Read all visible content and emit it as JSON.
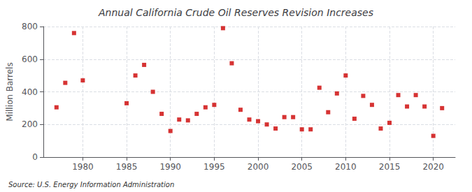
{
  "chart_data": {
    "type": "scatter",
    "title": "Annual California Crude Oil Reserves Revision Increases",
    "ylabel": "Million Barrels",
    "annotation": "Source: U.S. Energy Information Administration",
    "x": [
      1977,
      1978,
      1979,
      1980,
      1985,
      1986,
      1987,
      1988,
      1989,
      1990,
      1991,
      1992,
      1993,
      1994,
      1995,
      1996,
      1997,
      1998,
      1999,
      2000,
      2001,
      2002,
      2003,
      2004,
      2005,
      2006,
      2007,
      2008,
      2009,
      2010,
      2011,
      2012,
      2013,
      2014,
      2015,
      2016,
      2017,
      2018,
      2019,
      2020,
      2021
    ],
    "values": [
      305,
      455,
      760,
      470,
      330,
      500,
      565,
      400,
      265,
      160,
      230,
      225,
      265,
      305,
      320,
      790,
      575,
      290,
      230,
      220,
      200,
      175,
      245,
      245,
      170,
      170,
      425,
      275,
      390,
      500,
      235,
      375,
      320,
      175,
      210,
      380,
      310,
      380,
      310,
      130,
      300
    ],
    "color": "#cc0000",
    "marker": "square",
    "xlim": [
      1975.5,
      2022.5
    ],
    "ylim": [
      0,
      800
    ],
    "xticks": [
      1980,
      1985,
      1990,
      1995,
      2000,
      2005,
      2010,
      2015,
      2020
    ],
    "yticks": [
      0,
      200,
      400,
      600,
      800
    ],
    "grid": true
  }
}
